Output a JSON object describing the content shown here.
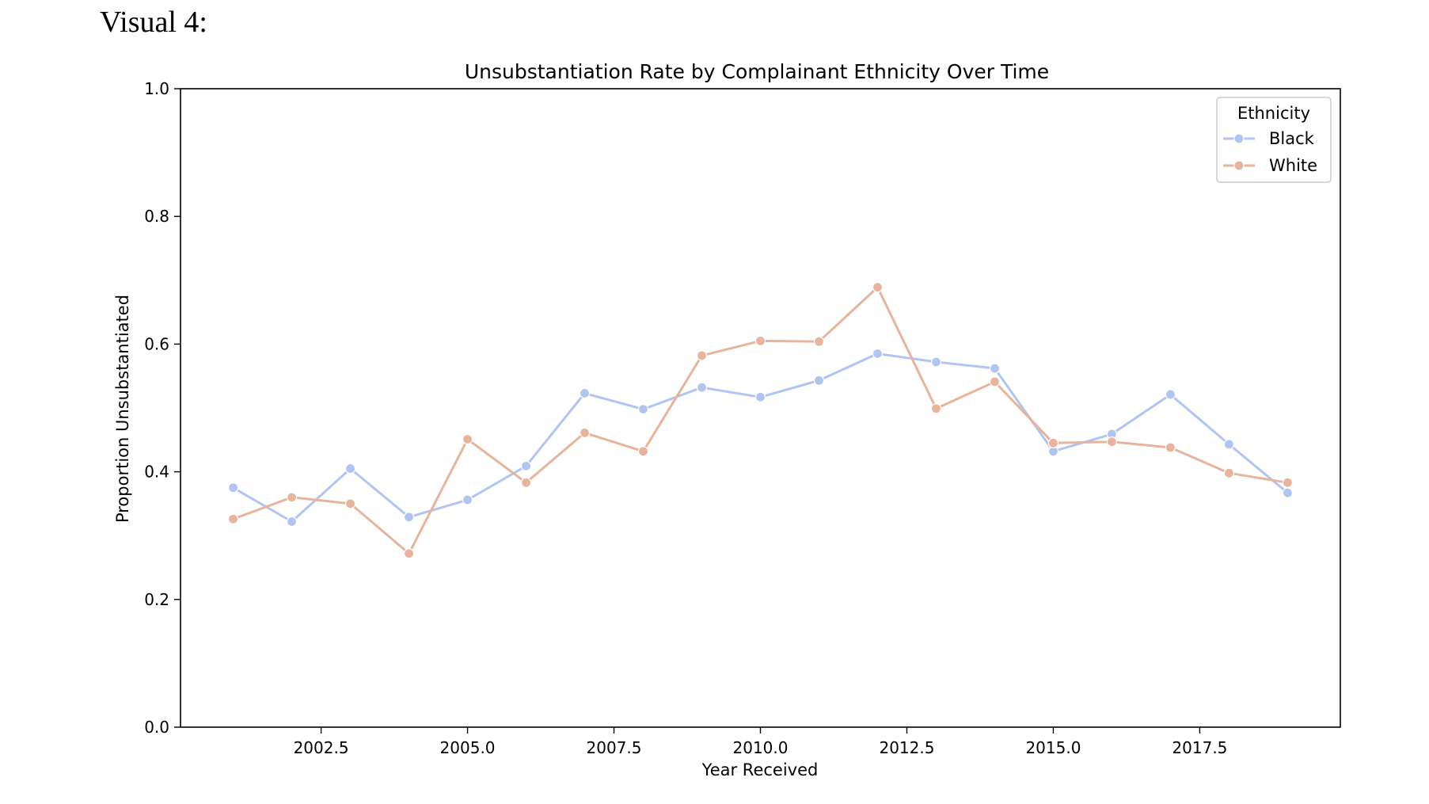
{
  "label": "Visual 4:",
  "chart_data": {
    "type": "line",
    "title": "Unsubstantiation Rate by Complainant Ethnicity Over Time",
    "xlabel": "Year Received",
    "ylabel": "Proportion Unsubstantiated",
    "xlim": [
      2000.1,
      2019.9
    ],
    "ylim": [
      0.0,
      1.0
    ],
    "xticks": [
      2002.5,
      2005.0,
      2007.5,
      2010.0,
      2012.5,
      2015.0,
      2017.5
    ],
    "xtick_labels": [
      "2002.5",
      "2005.0",
      "2007.5",
      "2010.0",
      "2012.5",
      "2015.0",
      "2017.5"
    ],
    "yticks": [
      0.0,
      0.2,
      0.4,
      0.6,
      0.8,
      1.0
    ],
    "ytick_labels": [
      "0.0",
      "0.2",
      "0.4",
      "0.6",
      "0.8",
      "1.0"
    ],
    "grid": false,
    "legend": {
      "title": "Ethnicity",
      "placement": "top-right"
    },
    "x": [
      2001,
      2002,
      2003,
      2004,
      2005,
      2006,
      2007,
      2008,
      2009,
      2010,
      2011,
      2012,
      2013,
      2014,
      2015,
      2016,
      2017,
      2018,
      2019
    ],
    "series": [
      {
        "name": "Black",
        "color": "#b2c4f2",
        "values": [
          0.375,
          0.322,
          0.405,
          0.329,
          0.356,
          0.409,
          0.523,
          0.498,
          0.532,
          0.517,
          0.543,
          0.585,
          0.572,
          0.562,
          0.432,
          0.459,
          0.521,
          0.443,
          0.367
        ]
      },
      {
        "name": "White",
        "color": "#e8b49c",
        "values": [
          0.326,
          0.36,
          0.35,
          0.272,
          0.451,
          0.383,
          0.461,
          0.432,
          0.582,
          0.605,
          0.604,
          0.689,
          0.499,
          0.541,
          0.445,
          0.447,
          0.438,
          0.398,
          0.383
        ]
      }
    ]
  }
}
